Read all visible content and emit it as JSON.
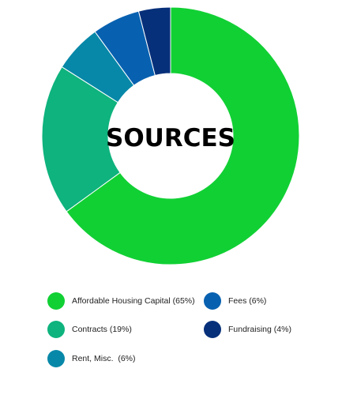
{
  "chart_data": {
    "type": "pie",
    "variant": "donut",
    "center_label": "SOURCES",
    "start": "12 o'clock, clockwise",
    "slices": [
      {
        "label": "Affordable Housing Capital (65%)",
        "value": 65,
        "color": "#11d034"
      },
      {
        "label": "Contracts (19%)",
        "value": 19,
        "color": "#0eb37d"
      },
      {
        "label": "Rent, Misc.  (6%)",
        "value": 6,
        "color": "#0888a8"
      },
      {
        "label": "Fees (6%)",
        "value": 6,
        "color": "#0861b0"
      },
      {
        "label": "Fundraising (4%)",
        "value": 4,
        "color": "#07307a"
      }
    ],
    "legend": {
      "placement": "bottom",
      "columns": [
        [
          "Affordable Housing Capital (65%)",
          "Contracts (19%)",
          "Rent, Misc.  (6%)"
        ],
        [
          "Fees (6%)",
          "Fundraising (4%)"
        ]
      ]
    }
  }
}
